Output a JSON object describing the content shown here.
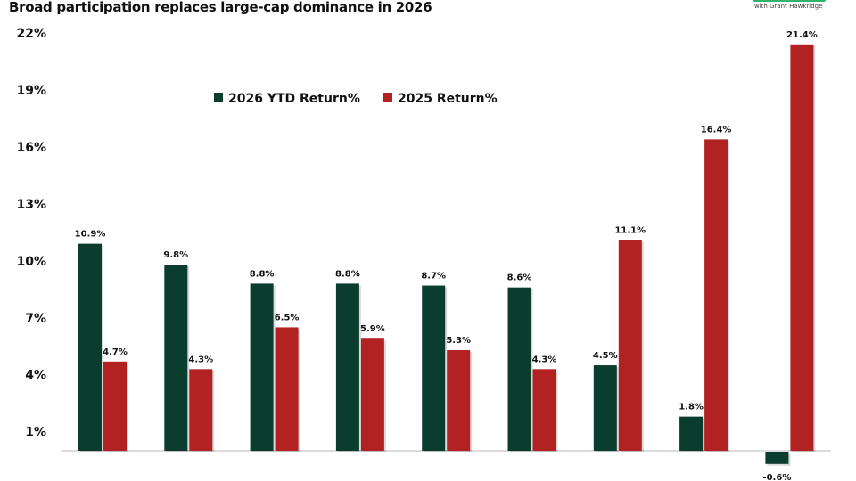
{
  "chart_data": {
    "type": "bar",
    "title": "Broad participation replaces large-cap dominance in 2026",
    "xlabel": "",
    "ylabel": "",
    "ylim": [
      0,
      22
    ],
    "yticks": [
      1,
      4,
      7,
      10,
      13,
      16,
      19,
      22
    ],
    "ytick_labels": [
      "1%",
      "4%",
      "7%",
      "10%",
      "13%",
      "16%",
      "19%",
      "22%"
    ],
    "grid": false,
    "legend_placement": "top-left",
    "categories": [
      "",
      "",
      "",
      "",
      "",
      "",
      "",
      "",
      ""
    ],
    "series": [
      {
        "name": "2026 YTD Return%",
        "color": "#0b3d2e",
        "values": [
          10.9,
          9.8,
          8.8,
          8.8,
          8.7,
          8.6,
          4.5,
          1.8,
          -0.6
        ],
        "labels": [
          "10.9%",
          "9.8%",
          "8.8%",
          "8.8%",
          "8.7%",
          "8.6%",
          "4.5%",
          "1.8%",
          "-0.6%"
        ]
      },
      {
        "name": "2025 Return%",
        "color": "#b22222",
        "values": [
          4.7,
          4.3,
          6.5,
          5.9,
          5.3,
          4.3,
          11.1,
          16.4,
          21.4
        ],
        "labels": [
          "4.7%",
          "4.3%",
          "6.5%",
          "5.9%",
          "5.3%",
          "4.3%",
          "11.1%",
          "16.4%",
          "21.4%"
        ]
      }
    ]
  },
  "logo": {
    "subtitle": "with Grant Hawkridge",
    "color": "#2fb56a"
  }
}
